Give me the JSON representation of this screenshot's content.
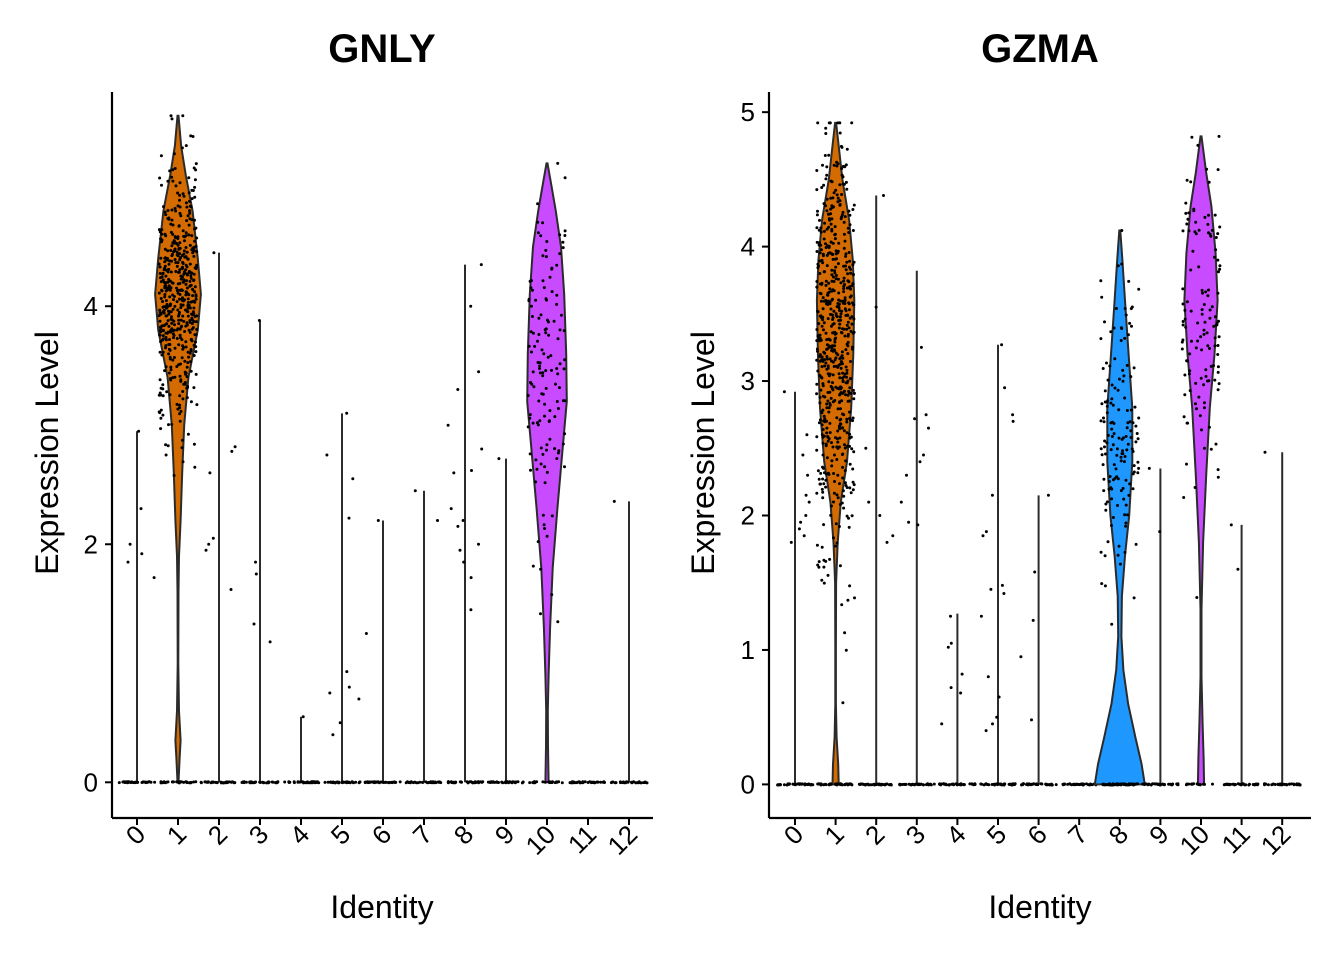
{
  "chart_data": [
    {
      "type": "violin",
      "title": "GNLY",
      "xlabel": "Identity",
      "ylabel": "Expression Level",
      "categories": [
        "0",
        "1",
        "2",
        "3",
        "4",
        "5",
        "6",
        "7",
        "8",
        "9",
        "10",
        "11",
        "12"
      ],
      "yticks": [
        0,
        2,
        4
      ],
      "ylim": [
        -0.3,
        5.8
      ],
      "max_values": [
        2.95,
        5.6,
        4.45,
        3.88,
        0.55,
        3.1,
        2.2,
        2.45,
        4.35,
        2.72,
        5.2,
        0.0,
        2.36
      ],
      "groups": [
        {
          "category": "0",
          "max": 2.95,
          "fill": null,
          "profile": null,
          "n_zero": 35,
          "nonzero": [
            1.85,
            1.92,
            2.0,
            2.3,
            1.72,
            2.95
          ]
        },
        {
          "category": "1",
          "max": 5.6,
          "fill": "#D36B00",
          "n_zero": 30,
          "n_body": 520,
          "mean": 4.1,
          "sd": 0.55,
          "profile": [
            [
              0,
              0.01
            ],
            [
              0.2,
              0.03
            ],
            [
              0.35,
              0.05
            ],
            [
              0.6,
              0.02
            ],
            [
              1.0,
              0.005
            ],
            [
              1.6,
              0.01
            ],
            [
              1.9,
              0.02
            ],
            [
              2.2,
              0.05
            ],
            [
              2.6,
              0.08
            ],
            [
              3.0,
              0.12
            ],
            [
              3.4,
              0.2
            ],
            [
              3.8,
              0.38
            ],
            [
              4.1,
              0.44
            ],
            [
              4.4,
              0.38
            ],
            [
              4.8,
              0.28
            ],
            [
              5.1,
              0.15
            ],
            [
              5.35,
              0.06
            ],
            [
              5.6,
              0.01
            ]
          ],
          "nonzero": []
        },
        {
          "category": "2",
          "max": 4.45,
          "fill": null,
          "profile": null,
          "n_zero": 35,
          "nonzero": [
            2.82,
            2.05,
            2.0,
            1.62,
            1.95,
            2.78,
            2.6,
            4.45
          ]
        },
        {
          "category": "3",
          "max": 3.88,
          "fill": null,
          "profile": null,
          "n_zero": 35,
          "nonzero": [
            1.75,
            1.18,
            1.85,
            1.33,
            3.88
          ]
        },
        {
          "category": "4",
          "max": 0.55,
          "fill": null,
          "profile": null,
          "n_zero": 35,
          "nonzero": [
            0.55
          ]
        },
        {
          "category": "5",
          "max": 3.1,
          "fill": null,
          "profile": null,
          "n_zero": 35,
          "nonzero": [
            0.7,
            0.75,
            0.8,
            0.4,
            0.5,
            0.93,
            2.55,
            2.75,
            3.1,
            2.22
          ]
        },
        {
          "category": "6",
          "max": 2.2,
          "fill": null,
          "profile": null,
          "n_zero": 35,
          "nonzero": [
            1.25,
            2.2
          ]
        },
        {
          "category": "7",
          "max": 2.45,
          "fill": null,
          "profile": null,
          "n_zero": 35,
          "nonzero": [
            2.2,
            2.45
          ]
        },
        {
          "category": "8",
          "max": 4.35,
          "fill": null,
          "profile": null,
          "n_zero": 35,
          "nonzero": [
            1.95,
            2.0,
            2.2,
            2.6,
            3.0,
            3.3,
            4.0,
            4.35,
            1.72,
            1.45,
            2.3,
            2.15,
            2.8,
            3.45,
            1.85,
            2.62
          ]
        },
        {
          "category": "9",
          "max": 2.72,
          "fill": null,
          "profile": null,
          "n_zero": 35,
          "nonzero": [
            2.72
          ]
        },
        {
          "category": "10",
          "max": 5.2,
          "fill": "#C84BFF",
          "n_zero": 20,
          "n_body": 135,
          "mean": 3.3,
          "sd": 0.75,
          "profile": [
            [
              0,
              0.03
            ],
            [
              0.3,
              0.02
            ],
            [
              0.6,
              0.015
            ],
            [
              0.9,
              0.03
            ],
            [
              1.3,
              0.06
            ],
            [
              1.8,
              0.11
            ],
            [
              2.3,
              0.2
            ],
            [
              2.8,
              0.3
            ],
            [
              3.2,
              0.38
            ],
            [
              3.6,
              0.37
            ],
            [
              4.1,
              0.33
            ],
            [
              4.5,
              0.27
            ],
            [
              4.8,
              0.17
            ],
            [
              5.0,
              0.09
            ],
            [
              5.2,
              0.01
            ]
          ],
          "nonzero": []
        },
        {
          "category": "11",
          "max": 0.0,
          "fill": null,
          "profile": null,
          "n_zero": 35,
          "nonzero": []
        },
        {
          "category": "12",
          "max": 2.36,
          "fill": null,
          "profile": null,
          "n_zero": 35,
          "nonzero": [
            2.36
          ]
        }
      ]
    },
    {
      "type": "violin",
      "title": "GZMA",
      "xlabel": "Identity",
      "ylabel": "Expression Level",
      "categories": [
        "0",
        "1",
        "2",
        "3",
        "4",
        "5",
        "6",
        "7",
        "8",
        "9",
        "10",
        "11",
        "12"
      ],
      "yticks": [
        0,
        1,
        2,
        3,
        4,
        5
      ],
      "ylim": [
        -0.25,
        5.15
      ],
      "max_values": [
        2.92,
        4.92,
        4.38,
        3.82,
        1.27,
        3.27,
        2.15,
        0.0,
        4.12,
        2.35,
        4.82,
        1.93,
        2.47
      ],
      "groups": [
        {
          "category": "0",
          "max": 2.92,
          "fill": null,
          "profile": null,
          "n_zero": 35,
          "nonzero": [
            1.8,
            1.95,
            2.1,
            2.15,
            1.85,
            2.45,
            2.3,
            2.92,
            2.6,
            1.9,
            2.0
          ]
        },
        {
          "category": "1",
          "max": 4.92,
          "fill": "#D36B00",
          "n_zero": 40,
          "n_body": 620,
          "mean": 3.25,
          "sd": 0.75,
          "profile": [
            [
              0,
              0.06
            ],
            [
              0.15,
              0.05
            ],
            [
              0.35,
              0.02
            ],
            [
              0.6,
              0.005
            ],
            [
              1.0,
              0.005
            ],
            [
              1.5,
              0.01
            ],
            [
              1.8,
              0.04
            ],
            [
              2.1,
              0.1
            ],
            [
              2.4,
              0.22
            ],
            [
              2.8,
              0.3
            ],
            [
              3.2,
              0.34
            ],
            [
              3.6,
              0.36
            ],
            [
              3.9,
              0.33
            ],
            [
              4.2,
              0.26
            ],
            [
              4.5,
              0.13
            ],
            [
              4.75,
              0.06
            ],
            [
              4.92,
              0.01
            ]
          ],
          "nonzero": []
        },
        {
          "category": "2",
          "max": 4.38,
          "fill": null,
          "profile": null,
          "n_zero": 35,
          "nonzero": [
            1.85,
            2.0,
            1.8,
            2.5,
            3.55,
            2.1,
            4.38
          ]
        },
        {
          "category": "3",
          "max": 3.82,
          "fill": null,
          "profile": null,
          "n_zero": 35,
          "nonzero": [
            2.65,
            2.75,
            1.95,
            2.1,
            2.4,
            3.25,
            2.45,
            2.72,
            2.3,
            1.93
          ]
        },
        {
          "category": "4",
          "max": 1.27,
          "fill": null,
          "profile": null,
          "n_zero": 35,
          "nonzero": [
            0.45,
            0.68,
            0.72,
            1.05,
            1.25,
            0.82,
            1.02
          ]
        },
        {
          "category": "5",
          "max": 3.27,
          "fill": null,
          "profile": null,
          "n_zero": 35,
          "nonzero": [
            1.45,
            1.85,
            2.15,
            2.75,
            0.5,
            0.4,
            0.65,
            0.8,
            1.48,
            1.88,
            2.95,
            2.7,
            1.25,
            1.42,
            3.27,
            0.45
          ]
        },
        {
          "category": "6",
          "max": 2.15,
          "fill": null,
          "profile": null,
          "n_zero": 35,
          "nonzero": [
            0.95,
            1.58,
            1.22,
            0.48,
            2.15
          ]
        },
        {
          "category": "7",
          "max": 0.0,
          "fill": null,
          "profile": null,
          "n_zero": 35,
          "nonzero": []
        },
        {
          "category": "8",
          "max": 4.12,
          "fill": "#1E97FF",
          "n_zero": 70,
          "n_body": 150,
          "mean": 2.6,
          "sd": 0.55,
          "profile": [
            [
              0,
              0.48
            ],
            [
              0.15,
              0.42
            ],
            [
              0.35,
              0.3
            ],
            [
              0.6,
              0.16
            ],
            [
              0.85,
              0.07
            ],
            [
              1.1,
              0.03
            ],
            [
              1.4,
              0.04
            ],
            [
              1.7,
              0.1
            ],
            [
              2.0,
              0.18
            ],
            [
              2.4,
              0.24
            ],
            [
              2.8,
              0.24
            ],
            [
              3.2,
              0.17
            ],
            [
              3.6,
              0.1
            ],
            [
              3.9,
              0.05
            ],
            [
              4.12,
              0.01
            ]
          ],
          "nonzero": []
        },
        {
          "category": "9",
          "max": 2.35,
          "fill": null,
          "profile": null,
          "n_zero": 35,
          "nonzero": [
            1.88,
            2.35
          ]
        },
        {
          "category": "10",
          "max": 4.82,
          "fill": "#C84BFF",
          "n_zero": 15,
          "n_body": 130,
          "mean": 3.5,
          "sd": 0.6,
          "profile": [
            [
              0,
              0.06
            ],
            [
              0.2,
              0.05
            ],
            [
              0.45,
              0.03
            ],
            [
              0.8,
              0.01
            ],
            [
              1.3,
              0.01
            ],
            [
              1.8,
              0.04
            ],
            [
              2.3,
              0.1
            ],
            [
              2.8,
              0.17
            ],
            [
              3.2,
              0.26
            ],
            [
              3.6,
              0.32
            ],
            [
              3.95,
              0.28
            ],
            [
              4.3,
              0.2
            ],
            [
              4.55,
              0.1
            ],
            [
              4.82,
              0.01
            ]
          ],
          "nonzero": []
        },
        {
          "category": "11",
          "max": 1.93,
          "fill": null,
          "profile": null,
          "n_zero": 35,
          "nonzero": [
            1.6,
            1.93
          ]
        },
        {
          "category": "12",
          "max": 2.47,
          "fill": null,
          "profile": null,
          "n_zero": 35,
          "nonzero": [
            2.47
          ]
        }
      ]
    }
  ]
}
